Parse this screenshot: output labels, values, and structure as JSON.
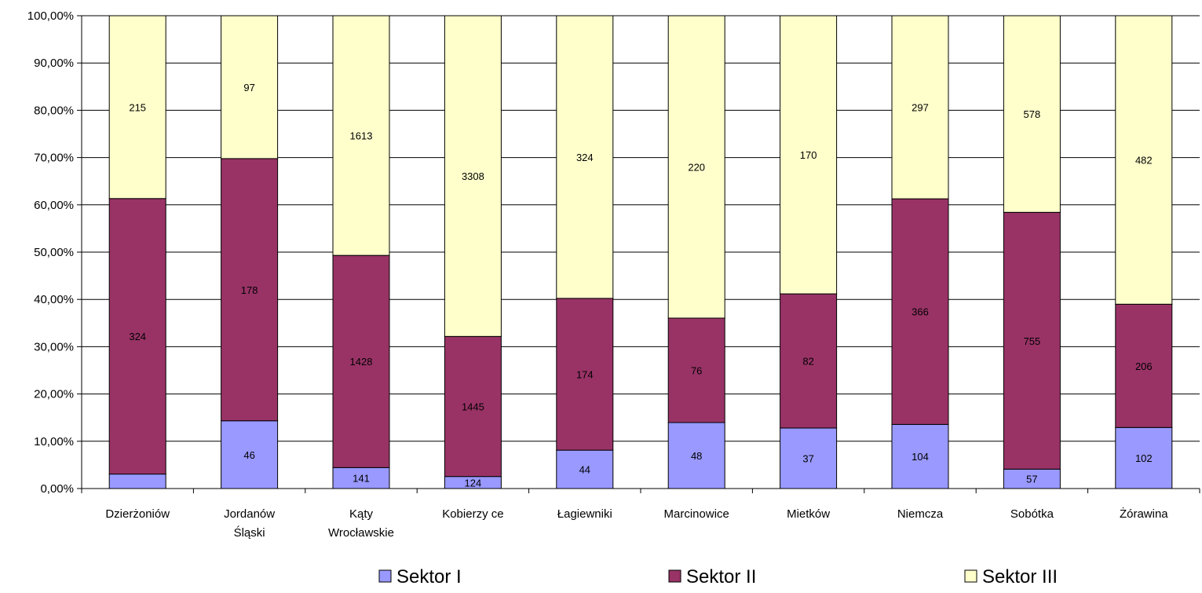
{
  "chart_data": {
    "type": "bar",
    "stacked": "percent",
    "categories": [
      [
        "Dzierżoniów"
      ],
      [
        "Jordanów",
        "Śląski"
      ],
      [
        "Kąty",
        "Wrocławskie"
      ],
      [
        "Kobierzy ce"
      ],
      [
        "Łagiewniki"
      ],
      [
        "Marcinowice"
      ],
      [
        "Mietków"
      ],
      [
        "Niemcza"
      ],
      [
        "Sobótka"
      ],
      [
        "Żórawina"
      ]
    ],
    "series": [
      {
        "name": "Sektor I",
        "color": "#9999ff",
        "values": [
          17,
          46,
          141,
          124,
          44,
          48,
          37,
          104,
          57,
          102
        ],
        "labels": [
          "",
          "46",
          "141",
          "124",
          "44",
          "48",
          "37",
          "104",
          "57",
          "102"
        ]
      },
      {
        "name": "Sektor II",
        "color": "#993366",
        "values": [
          324,
          178,
          1428,
          1445,
          174,
          76,
          82,
          366,
          755,
          206
        ],
        "labels": [
          "324",
          "178",
          "1428",
          "1445",
          "174",
          "76",
          "82",
          "366",
          "755",
          "206"
        ]
      },
      {
        "name": "Sektor III",
        "color": "#ffffcc",
        "values": [
          215,
          97,
          1613,
          3308,
          324,
          220,
          170,
          297,
          578,
          482
        ],
        "labels": [
          "215",
          "97",
          "1613",
          "3308",
          "324",
          "220",
          "170",
          "297",
          "578",
          "482"
        ]
      }
    ],
    "y_ticks": [
      "0,00%",
      "10,00%",
      "20,00%",
      "30,00%",
      "40,00%",
      "50,00%",
      "60,00%",
      "70,00%",
      "80,00%",
      "90,00%",
      "100,00%"
    ],
    "ylim": [
      0,
      100
    ],
    "grid": true,
    "legend": "bottom",
    "title": "",
    "xlabel": "",
    "ylabel": ""
  }
}
